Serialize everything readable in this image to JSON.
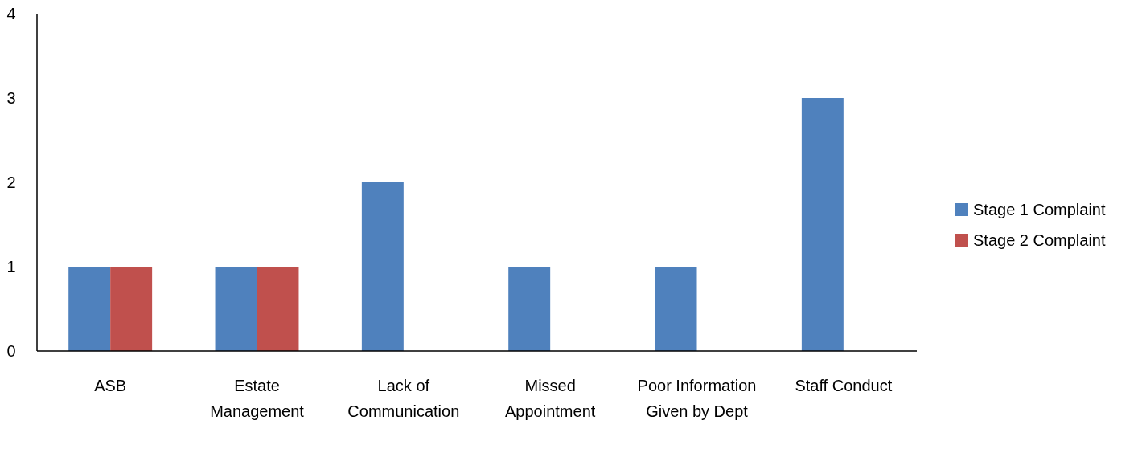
{
  "chart_data": {
    "type": "bar",
    "categories": [
      "ASB",
      "Estate Management",
      "Lack of Communication",
      "Missed Appointment",
      "Poor Information Given by Dept",
      "Staff Conduct"
    ],
    "series": [
      {
        "name": "Stage 1 Complaint",
        "color": "#4f81bd",
        "values": [
          1,
          1,
          2,
          1,
          1,
          3
        ]
      },
      {
        "name": "Stage 2 Complaint",
        "color": "#c0504d",
        "values": [
          1,
          1,
          0,
          0,
          0,
          0
        ]
      }
    ],
    "ylim": [
      0,
      4
    ],
    "yticks": [
      0,
      1,
      2,
      3,
      4
    ],
    "grid": false,
    "legend": "right"
  }
}
